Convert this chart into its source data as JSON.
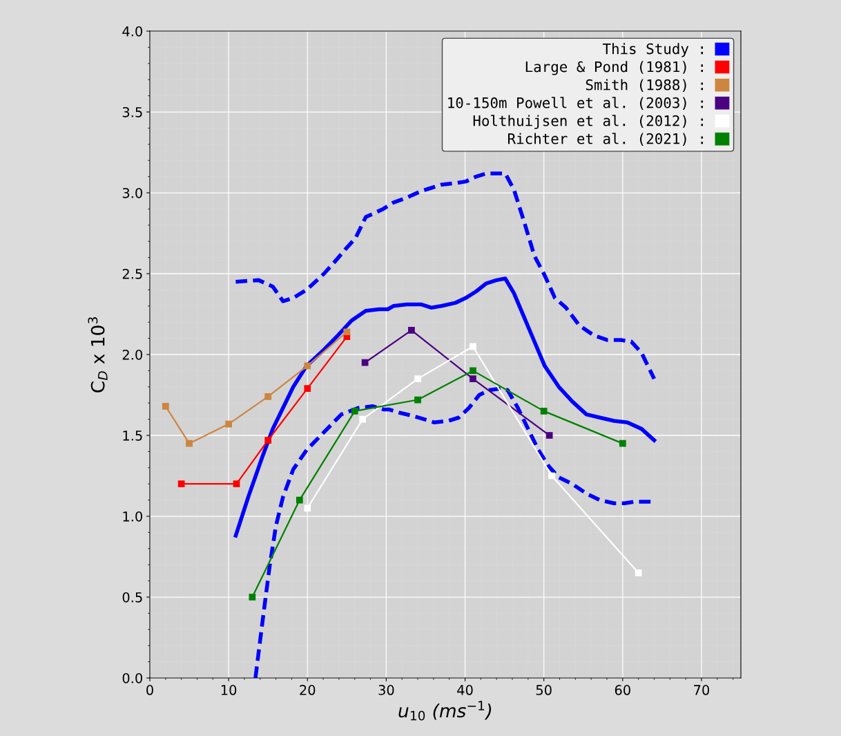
{
  "chart_data": {
    "type": "line",
    "xlabel": "u$_{10}$ (ms$^{−1}$)",
    "ylabel": "C$_{D}$ x 10$^{3}$",
    "xlim": [
      0,
      75
    ],
    "ylim": [
      0,
      4.0
    ],
    "xticks": [
      0,
      10,
      20,
      30,
      40,
      50,
      60,
      70
    ],
    "yticks": [
      {
        "value": 0,
        "label": "0.0"
      },
      0.5,
      {
        "value": 1,
        "label": "1.0"
      },
      1.5,
      {
        "value": 2,
        "label": "2.0"
      },
      2.5,
      {
        "value": 3,
        "label": "3.0"
      },
      3.5,
      {
        "value": 4,
        "label": "4.0"
      }
    ],
    "grid": true,
    "legend": "top right",
    "series": [
      {
        "name": "This Study :",
        "color": "#0000ff",
        "line_style": "solid",
        "marker": "none",
        "x": [
          10.9,
          12.5,
          14.3,
          15.6,
          16.9,
          18.2,
          19.9,
          22.1,
          23.9,
          25.6,
          27.4,
          29.1,
          30.2,
          30.9,
          32.6,
          34.4,
          35.7,
          37.0,
          38.8,
          40.1,
          41.4,
          42.7,
          44.0,
          45.1,
          46.2,
          47.5,
          48.8,
          50.1,
          51.9,
          53.6,
          55.4,
          57.1,
          58.9,
          60.6,
          62.4,
          64.0
        ],
        "values": [
          0.88,
          1.12,
          1.37,
          1.54,
          1.67,
          1.8,
          1.93,
          2.03,
          2.12,
          2.21,
          2.27,
          2.28,
          2.28,
          2.3,
          2.31,
          2.31,
          2.29,
          2.3,
          2.32,
          2.35,
          2.39,
          2.44,
          2.46,
          2.47,
          2.38,
          2.23,
          2.08,
          1.93,
          1.8,
          1.71,
          1.63,
          1.61,
          1.59,
          1.58,
          1.54,
          1.47
        ]
      },
      {
        "color": "#0000ff",
        "line_style": "dashed",
        "marker": "none",
        "x": [
          10.9,
          13.8,
          15.6,
          16.9,
          18.2,
          19.9,
          22.1,
          23.4,
          24.8,
          26.1,
          27.4,
          29.6,
          30.9,
          32.6,
          34.4,
          35.7,
          37.0,
          38.8,
          40.1,
          41.4,
          42.7,
          44.0,
          45.1,
          46.2,
          47.5,
          48.8,
          50.1,
          51.4,
          52.8,
          54.5,
          56.3,
          58.0,
          59.8,
          61.1,
          62.4,
          64.0
        ],
        "values": [
          2.45,
          2.46,
          2.42,
          2.33,
          2.35,
          2.4,
          2.5,
          2.57,
          2.65,
          2.72,
          2.85,
          2.9,
          2.94,
          2.97,
          3.01,
          3.03,
          3.05,
          3.06,
          3.07,
          3.1,
          3.12,
          3.12,
          3.12,
          3.02,
          2.82,
          2.61,
          2.49,
          2.35,
          2.29,
          2.18,
          2.12,
          2.09,
          2.09,
          2.08,
          2.01,
          1.85
        ]
      },
      {
        "color": "#0000ff",
        "line_style": "dashed",
        "marker": "none",
        "x": [
          13.4,
          14.3,
          15.2,
          16.0,
          16.9,
          18.2,
          19.9,
          22.1,
          24.3,
          26.5,
          28.3,
          29.7,
          30.4,
          31.7,
          33.4,
          34.8,
          36.1,
          37.9,
          39.2,
          40.5,
          41.8,
          43.1,
          44.5,
          45.4,
          46.7,
          48.0,
          49.3,
          50.6,
          51.9,
          53.6,
          55.4,
          57.1,
          58.9,
          60.2,
          61.5,
          63.7
        ],
        "values": [
          0.0,
          0.35,
          0.69,
          0.94,
          1.12,
          1.29,
          1.41,
          1.52,
          1.63,
          1.67,
          1.68,
          1.66,
          1.66,
          1.64,
          1.62,
          1.6,
          1.58,
          1.59,
          1.61,
          1.67,
          1.75,
          1.78,
          1.79,
          1.78,
          1.67,
          1.54,
          1.41,
          1.31,
          1.24,
          1.2,
          1.14,
          1.1,
          1.08,
          1.08,
          1.09,
          1.09
        ]
      },
      {
        "name": "Large & Pond (1981) :",
        "color": "#ff0000",
        "line_style": "solid",
        "marker": "square",
        "x": [
          4,
          11,
          15,
          20,
          25
        ],
        "values": [
          1.2,
          1.2,
          1.47,
          1.79,
          2.11
        ]
      },
      {
        "name": "Smith (1988) :",
        "color": "#cd853f",
        "line_style": "solid",
        "marker": "square",
        "x": [
          2,
          5,
          10,
          15,
          20,
          25
        ],
        "values": [
          1.68,
          1.45,
          1.57,
          1.74,
          1.93,
          2.14
        ]
      },
      {
        "name": "10-150m Powell et al. (2003) :",
        "color": "#4b0082",
        "line_style": "solid",
        "marker": "square",
        "x": [
          27.3,
          33.2,
          41,
          50.7
        ],
        "values": [
          1.95,
          2.15,
          1.85,
          1.5
        ]
      },
      {
        "name": "Holthuijsen et al. (2012) :",
        "color": "#ffffff",
        "line_style": "solid",
        "marker": "square",
        "x": [
          20,
          27,
          34,
          41,
          51,
          62
        ],
        "values": [
          1.05,
          1.6,
          1.85,
          2.05,
          1.25,
          0.65
        ]
      },
      {
        "name": "Richter et al. (2021) :",
        "color": "#008000",
        "line_style": "solid",
        "marker": "square",
        "x": [
          13,
          19,
          26,
          34,
          41,
          50,
          60
        ],
        "values": [
          0.5,
          1.1,
          1.65,
          1.72,
          1.9,
          1.65,
          1.45
        ]
      }
    ]
  }
}
